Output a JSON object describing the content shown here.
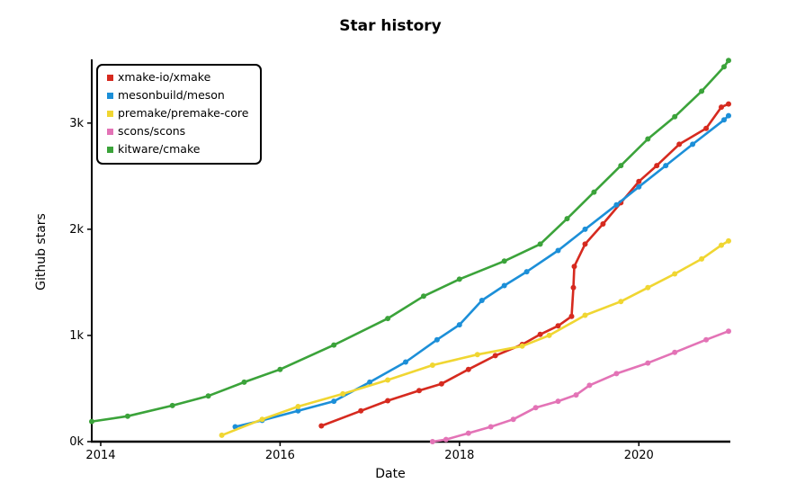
{
  "chart_data": {
    "type": "line",
    "title": "Star history",
    "xlabel": "Date",
    "ylabel": "Github stars",
    "x_ticks": [
      "2014",
      "2016",
      "2018",
      "2020"
    ],
    "x_tick_values": [
      2014.0,
      2016.0,
      2018.0,
      2020.0
    ],
    "y_ticks": [
      "0k",
      "1k",
      "2k",
      "3k"
    ],
    "y_tick_values": [
      0,
      1000,
      2000,
      3000
    ],
    "xlim": [
      2013.9,
      2021.0
    ],
    "ylim": [
      0,
      3600
    ],
    "grid": false,
    "legend_position": "top-left",
    "series": [
      {
        "name": "xmake-io/xmake",
        "color": "#d62a1f",
        "points": [
          [
            2016.46,
            148
          ],
          [
            2016.9,
            290
          ],
          [
            2017.2,
            385
          ],
          [
            2017.55,
            480
          ],
          [
            2017.8,
            545
          ],
          [
            2018.1,
            680
          ],
          [
            2018.4,
            810
          ],
          [
            2018.7,
            915
          ],
          [
            2018.9,
            1010
          ],
          [
            2019.1,
            1090
          ],
          [
            2019.25,
            1180
          ],
          [
            2019.27,
            1450
          ],
          [
            2019.28,
            1650
          ],
          [
            2019.4,
            1860
          ],
          [
            2019.6,
            2050
          ],
          [
            2019.8,
            2250
          ],
          [
            2020.0,
            2450
          ],
          [
            2020.2,
            2600
          ],
          [
            2020.45,
            2800
          ],
          [
            2020.75,
            2950
          ],
          [
            2020.92,
            3150
          ],
          [
            2021.0,
            3180
          ]
        ]
      },
      {
        "name": "mesonbuild/meson",
        "color": "#1c8fd8",
        "points": [
          [
            2015.5,
            140
          ],
          [
            2015.8,
            200
          ],
          [
            2016.2,
            290
          ],
          [
            2016.6,
            380
          ],
          [
            2017.0,
            560
          ],
          [
            2017.4,
            750
          ],
          [
            2017.75,
            960
          ],
          [
            2018.0,
            1100
          ],
          [
            2018.25,
            1330
          ],
          [
            2018.5,
            1470
          ],
          [
            2018.75,
            1600
          ],
          [
            2019.1,
            1800
          ],
          [
            2019.4,
            2000
          ],
          [
            2019.75,
            2230
          ],
          [
            2020.0,
            2400
          ],
          [
            2020.3,
            2600
          ],
          [
            2020.6,
            2800
          ],
          [
            2020.95,
            3030
          ],
          [
            2021.0,
            3070
          ]
        ]
      },
      {
        "name": "premake/premake-core",
        "color": "#f0d632",
        "points": [
          [
            2015.35,
            60
          ],
          [
            2015.8,
            210
          ],
          [
            2016.2,
            330
          ],
          [
            2016.7,
            450
          ],
          [
            2017.2,
            580
          ],
          [
            2017.7,
            720
          ],
          [
            2018.2,
            820
          ],
          [
            2018.7,
            900
          ],
          [
            2019.0,
            1000
          ],
          [
            2019.4,
            1190
          ],
          [
            2019.8,
            1320
          ],
          [
            2020.1,
            1450
          ],
          [
            2020.4,
            1580
          ],
          [
            2020.7,
            1720
          ],
          [
            2020.92,
            1850
          ],
          [
            2021.0,
            1890
          ]
        ]
      },
      {
        "name": "scons/scons",
        "color": "#e373b6",
        "points": [
          [
            2017.7,
            0
          ],
          [
            2017.85,
            20
          ],
          [
            2018.1,
            80
          ],
          [
            2018.35,
            140
          ],
          [
            2018.6,
            210
          ],
          [
            2018.85,
            320
          ],
          [
            2019.1,
            380
          ],
          [
            2019.3,
            440
          ],
          [
            2019.45,
            530
          ],
          [
            2019.75,
            640
          ],
          [
            2020.1,
            740
          ],
          [
            2020.4,
            840
          ],
          [
            2020.75,
            960
          ],
          [
            2021.0,
            1040
          ]
        ]
      },
      {
        "name": "kitware/cmake",
        "color": "#3ba33a",
        "points": [
          [
            2013.9,
            190
          ],
          [
            2014.3,
            240
          ],
          [
            2014.8,
            340
          ],
          [
            2015.2,
            430
          ],
          [
            2015.6,
            560
          ],
          [
            2016.0,
            680
          ],
          [
            2016.6,
            910
          ],
          [
            2017.2,
            1160
          ],
          [
            2017.6,
            1370
          ],
          [
            2018.0,
            1530
          ],
          [
            2018.5,
            1700
          ],
          [
            2018.9,
            1860
          ],
          [
            2019.2,
            2100
          ],
          [
            2019.5,
            2350
          ],
          [
            2019.8,
            2600
          ],
          [
            2020.1,
            2850
          ],
          [
            2020.4,
            3060
          ],
          [
            2020.7,
            3300
          ],
          [
            2020.95,
            3530
          ],
          [
            2021.0,
            3590
          ]
        ]
      }
    ]
  }
}
